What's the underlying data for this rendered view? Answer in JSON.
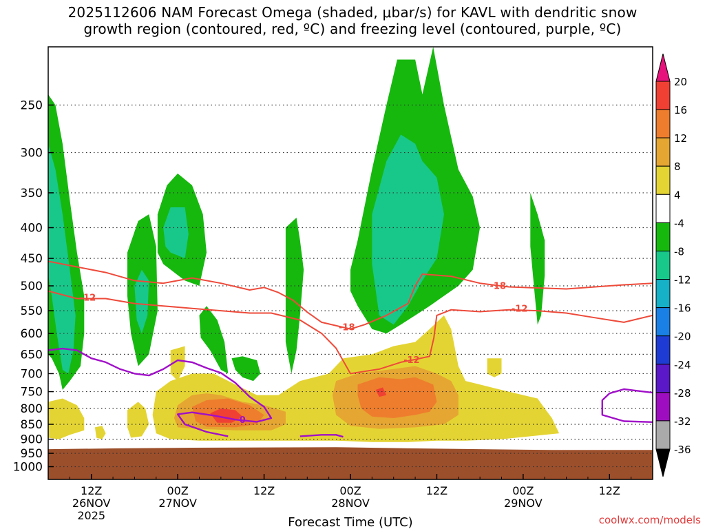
{
  "title_line1": "2025112606 NAM Forecast Omega (shaded, μbar/s) for KAVL with dendritic snow",
  "title_line2": "growth region (contoured, red, ºC) and freezing level (contoured, purple, ºC)",
  "credit": "coolwx.com/models",
  "chart_data": {
    "type": "heatmap",
    "xlabel": "Forecast Time (UTC)",
    "ylabel": "",
    "x_range_hours": [
      0,
      84
    ],
    "y_range_hPa": [
      200,
      1050
    ],
    "y_ticks": [
      250,
      300,
      350,
      400,
      450,
      500,
      550,
      600,
      650,
      700,
      750,
      800,
      850,
      900,
      950,
      1000
    ],
    "x_ticks": [
      {
        "hour": 6,
        "lines": [
          "12Z",
          "26NOV",
          "2025"
        ]
      },
      {
        "hour": 18,
        "lines": [
          "00Z",
          "27NOV"
        ]
      },
      {
        "hour": 30,
        "lines": [
          "12Z"
        ]
      },
      {
        "hour": 42,
        "lines": [
          "00Z",
          "28NOV"
        ]
      },
      {
        "hour": 54,
        "lines": [
          "12Z"
        ]
      },
      {
        "hour": 66,
        "lines": [
          "00Z",
          "29NOV"
        ]
      },
      {
        "hour": 78,
        "lines": [
          "12Z"
        ]
      }
    ],
    "grid": true,
    "colorbar": {
      "labels": [
        "20",
        "16",
        "12",
        "8",
        "4",
        "-4",
        "-8",
        "-12",
        "-16",
        "-20",
        "-24",
        "-28",
        "-32",
        "-36"
      ],
      "colors": [
        "#e8127c",
        "#f04033",
        "#ee7d2d",
        "#e5a632",
        "#e4d433",
        "#ffffff",
        "#16b80e",
        "#18c88a",
        "#16b0c7",
        "#1a80e6",
        "#1e3cd4",
        "#5a18c8",
        "#9e0ec0",
        "#aaaaaa",
        "#000000"
      ]
    },
    "colors": {
      "ground": "#9c4f2b",
      "dgz_contour": "#ee4a3a",
      "freezing_contour": "#a00fc8",
      "up_weak": "#16b80e",
      "up_mod": "#18c88a",
      "up_strong": "#16b0c7",
      "down_weak": "#e4d433",
      "down_mod": "#e5a632",
      "down_strong": "#ee7d2d",
      "down_max": "#f04033"
    },
    "contour_labels": [
      {
        "text": "-12",
        "hour": 5.5,
        "hPa": 522,
        "color": "dgz"
      },
      {
        "text": "-18",
        "hour": 41.5,
        "hPa": 585,
        "color": "dgz"
      },
      {
        "text": "-12",
        "hour": 50.5,
        "hPa": 663,
        "color": "dgz"
      },
      {
        "text": "-18",
        "hour": 62.5,
        "hPa": 499,
        "color": "dgz"
      },
      {
        "text": "-12",
        "hour": 65.5,
        "hPa": 545,
        "color": "dgz"
      },
      {
        "text": "0",
        "hour": 27,
        "hPa": 835,
        "color": "frz"
      }
    ],
    "dgz_contours": [
      {
        "name": "-18 top",
        "points": [
          [
            0,
            455
          ],
          [
            4,
            465
          ],
          [
            8,
            475
          ],
          [
            12,
            490
          ],
          [
            16,
            495
          ],
          [
            20,
            485
          ],
          [
            24,
            495
          ],
          [
            28,
            508
          ],
          [
            30,
            503
          ],
          [
            32,
            513
          ],
          [
            34,
            528
          ],
          [
            36,
            553
          ],
          [
            38,
            575
          ],
          [
            42,
            590
          ],
          [
            44,
            580
          ],
          [
            47,
            560
          ],
          [
            50,
            535
          ],
          [
            51,
            500
          ],
          [
            52,
            478
          ],
          [
            56,
            482
          ],
          [
            60,
            495
          ],
          [
            64,
            502
          ],
          [
            68,
            504
          ],
          [
            72,
            506
          ],
          [
            76,
            502
          ],
          [
            80,
            498
          ],
          [
            84,
            495
          ]
        ]
      },
      {
        "name": "-12 bottom",
        "points": [
          [
            0,
            510
          ],
          [
            4,
            525
          ],
          [
            8,
            525
          ],
          [
            12,
            535
          ],
          [
            16,
            540
          ],
          [
            20,
            545
          ],
          [
            24,
            550
          ],
          [
            28,
            555
          ],
          [
            31,
            555
          ],
          [
            35,
            570
          ],
          [
            38,
            600
          ],
          [
            40,
            635
          ],
          [
            42,
            700
          ],
          [
            46,
            688
          ],
          [
            49,
            670
          ],
          [
            51,
            663
          ],
          [
            53,
            655
          ],
          [
            53.6,
            610
          ],
          [
            54,
            560
          ],
          [
            56,
            548
          ],
          [
            60,
            552
          ],
          [
            64,
            548
          ],
          [
            68,
            550
          ],
          [
            72,
            555
          ],
          [
            76,
            565
          ],
          [
            80,
            575
          ],
          [
            84,
            560
          ]
        ]
      }
    ],
    "freezing_contours": [
      {
        "name": "0 main",
        "points": [
          [
            0,
            640
          ],
          [
            2,
            636
          ],
          [
            4,
            640
          ],
          [
            6,
            660
          ],
          [
            8,
            670
          ],
          [
            10,
            688
          ],
          [
            12,
            700
          ],
          [
            14,
            705
          ],
          [
            16,
            688
          ],
          [
            18,
            665
          ],
          [
            20,
            670
          ],
          [
            22,
            685
          ],
          [
            24,
            698
          ],
          [
            26,
            725
          ],
          [
            28,
            765
          ],
          [
            30,
            795
          ],
          [
            31,
            830
          ],
          [
            29,
            842
          ],
          [
            26,
            835
          ],
          [
            23,
            822
          ],
          [
            20,
            812
          ],
          [
            18,
            818
          ],
          [
            19,
            850
          ],
          [
            22,
            875
          ],
          [
            25,
            890
          ]
        ]
      },
      {
        "name": "0 lower",
        "points": [
          [
            35,
            890
          ],
          [
            38,
            885
          ],
          [
            40,
            885
          ],
          [
            41,
            892
          ]
        ]
      },
      {
        "name": "0 right",
        "points": [
          [
            84,
            753
          ],
          [
            82,
            748
          ],
          [
            80,
            743
          ],
          [
            78,
            755
          ],
          [
            77,
            775
          ],
          [
            77,
            820
          ],
          [
            80,
            840
          ],
          [
            84,
            843
          ]
        ]
      }
    ]
  }
}
